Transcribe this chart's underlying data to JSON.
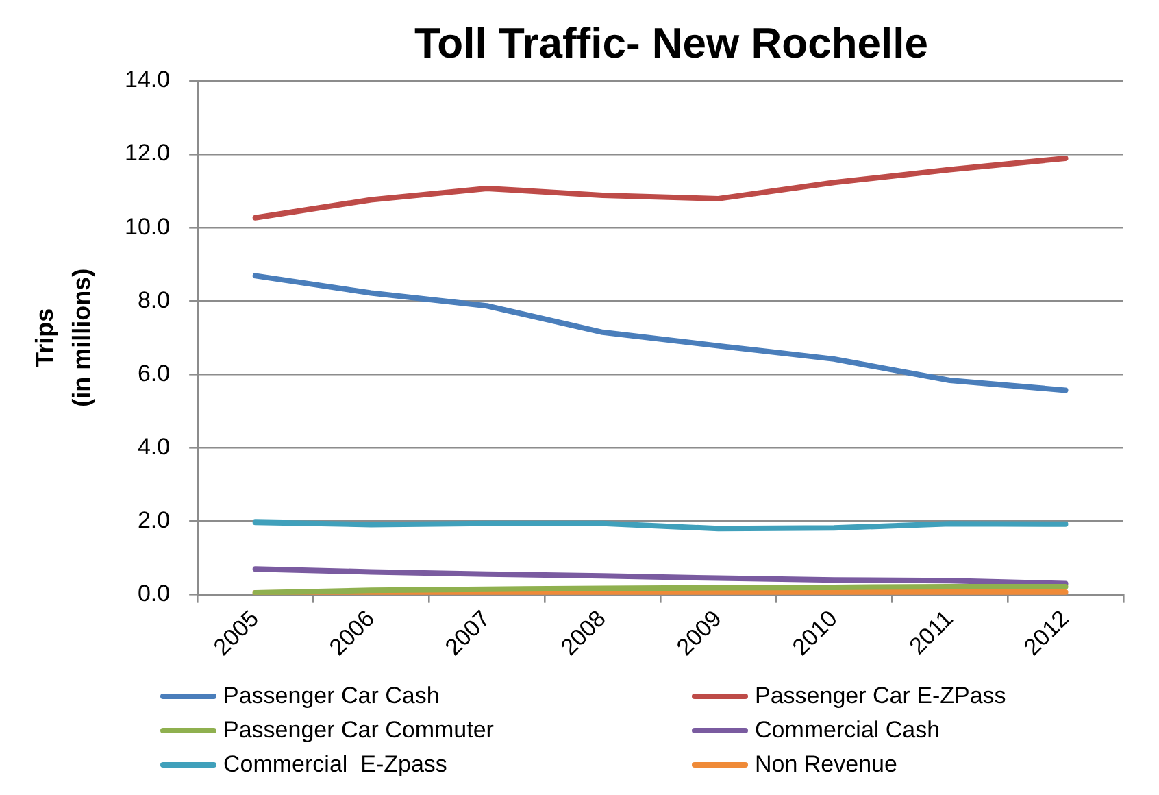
{
  "chart_data": {
    "type": "line",
    "title": "Toll Traffic- New Rochelle",
    "ylabel": "Trips (in millions)",
    "categories": [
      "2005",
      "2006",
      "2007",
      "2008",
      "2009",
      "2010",
      "2011",
      "2012"
    ],
    "series": [
      {
        "name": "Passenger Car Cash",
        "color": "#4a7ebb",
        "values": [
          8.69,
          8.22,
          7.87,
          7.15,
          6.78,
          6.42,
          5.84,
          5.57
        ]
      },
      {
        "name": "Passenger Car E-ZPass",
        "color": "#be4b48",
        "values": [
          10.27,
          10.76,
          11.07,
          10.88,
          10.79,
          11.23,
          11.58,
          11.89
        ]
      },
      {
        "name": "Passenger Car Commuter",
        "color": "#8fb04f",
        "values": [
          0.05,
          0.12,
          0.15,
          0.17,
          0.19,
          0.2,
          0.22,
          0.22
        ]
      },
      {
        "name": "Commercial Cash",
        "color": "#7a5ba0",
        "values": [
          0.7,
          0.62,
          0.56,
          0.51,
          0.45,
          0.4,
          0.38,
          0.3
        ]
      },
      {
        "name": "Commercial  E-Zpass",
        "color": "#40a0bb",
        "values": [
          1.97,
          1.91,
          1.94,
          1.94,
          1.8,
          1.82,
          1.93,
          1.92
        ]
      },
      {
        "name": "Non Revenue",
        "color": "#ef8a38",
        "values": [
          0.05,
          0.06,
          0.07,
          0.07,
          0.07,
          0.07,
          0.07,
          0.07
        ]
      }
    ],
    "ylim": [
      0,
      14
    ],
    "yticks": [
      {
        "value": 0,
        "label": "0.0"
      },
      {
        "value": 2,
        "label": "2.0"
      },
      {
        "value": 4,
        "label": "4.0"
      },
      {
        "value": 6,
        "label": "6.0"
      },
      {
        "value": 8,
        "label": "8.0"
      },
      {
        "value": 10,
        "label": "10.0"
      },
      {
        "value": 12,
        "label": "12.0"
      },
      {
        "value": 14,
        "label": "14.0"
      }
    ],
    "grid": "y",
    "legend": "bottom",
    "marker": "none",
    "line_style": "solid"
  }
}
